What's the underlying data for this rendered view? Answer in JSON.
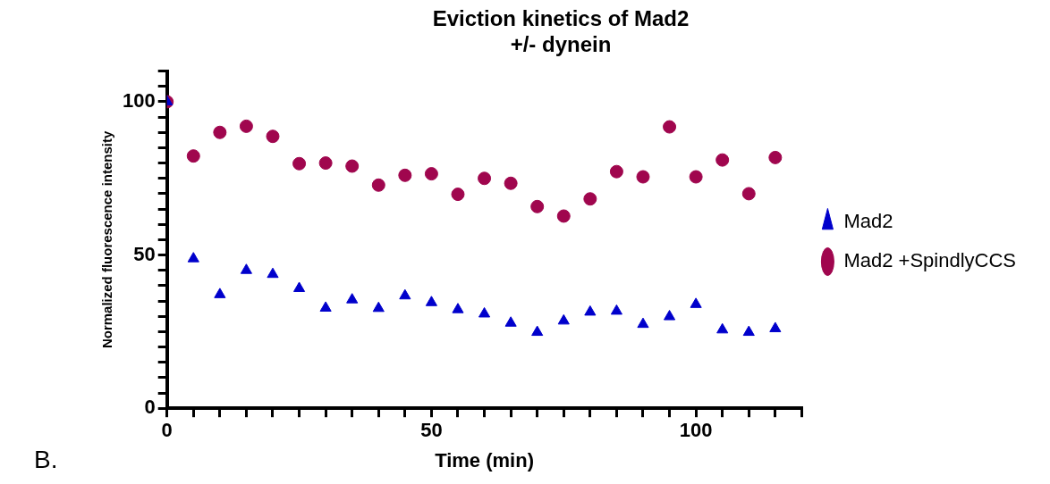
{
  "chart_data": {
    "type": "scatter",
    "title": "Eviction kinetics of Mad2\n+/- dynein",
    "xlabel": "Time (min)",
    "ylabel": "Normalized fluorescence intensity",
    "x": [
      0,
      5,
      10,
      15,
      20,
      25,
      30,
      35,
      40,
      45,
      50,
      55,
      60,
      65,
      70,
      75,
      80,
      85,
      90,
      95,
      100,
      105,
      110,
      115
    ],
    "series": [
      {
        "name": "Mad2",
        "color": "#0000cc",
        "marker": "triangle",
        "values": [
          100,
          48.8,
          37.1,
          45,
          43.7,
          39.1,
          32.7,
          35.4,
          32.6,
          36.7,
          34.5,
          32.2,
          30.8,
          27.8,
          24.8,
          28.5,
          31.4,
          31.7,
          27.4,
          29.9,
          33.9,
          25.6,
          24.8,
          26
        ]
      },
      {
        "name": "Mad2 +SpindlyCCS",
        "color": "#a0064e",
        "marker": "circle",
        "values": [
          100,
          82.3,
          90,
          92,
          88.7,
          79.8,
          80,
          79,
          72.8,
          76,
          76.5,
          69.8,
          75,
          73.4,
          65.8,
          62.7,
          68.3,
          77.2,
          75.5,
          91.8,
          75.5,
          81,
          70,
          81.8
        ]
      }
    ],
    "xlim": [
      0,
      120
    ],
    "xticks": [
      0,
      {
        "value": 5,
        "label": null
      },
      {
        "value": 10,
        "label": null
      },
      {
        "value": 15,
        "label": null
      },
      {
        "value": 20,
        "label": null
      },
      {
        "value": 25,
        "label": null
      },
      {
        "value": 30,
        "label": null
      },
      {
        "value": 35,
        "label": null
      },
      {
        "value": 40,
        "label": null
      },
      {
        "value": 45,
        "label": null
      },
      50,
      {
        "value": 55,
        "label": null
      },
      {
        "value": 60,
        "label": null
      },
      {
        "value": 65,
        "label": null
      },
      {
        "value": 70,
        "label": null
      },
      {
        "value": 75,
        "label": null
      },
      {
        "value": 80,
        "label": null
      },
      {
        "value": 85,
        "label": null
      },
      {
        "value": 90,
        "label": null
      },
      {
        "value": 95,
        "label": null
      },
      100,
      {
        "value": 105,
        "label": null
      },
      {
        "value": 110,
        "label": null
      },
      {
        "value": 115,
        "label": null
      },
      {
        "value": 120,
        "label": null
      }
    ],
    "ylim": [
      0,
      110
    ],
    "yticks": [
      0,
      {
        "value": 5,
        "label": null
      },
      {
        "value": 10,
        "label": null
      },
      {
        "value": 15,
        "label": null
      },
      {
        "value": 20,
        "label": null
      },
      {
        "value": 25,
        "label": null
      },
      {
        "value": 30,
        "label": null
      },
      {
        "value": 35,
        "label": null
      },
      {
        "value": 40,
        "label": null
      },
      {
        "value": 45,
        "label": null
      },
      50,
      {
        "value": 55,
        "label": null
      },
      {
        "value": 60,
        "label": null
      },
      {
        "value": 65,
        "label": null
      },
      {
        "value": 70,
        "label": null
      },
      {
        "value": 75,
        "label": null
      },
      {
        "value": 80,
        "label": null
      },
      {
        "value": 85,
        "label": null
      },
      {
        "value": 90,
        "label": null
      },
      {
        "value": 95,
        "label": null
      },
      100,
      {
        "value": 105,
        "label": null
      },
      {
        "value": 110,
        "label": null
      }
    ],
    "grid": false,
    "legend": "right",
    "annotations": [
      "B."
    ]
  }
}
